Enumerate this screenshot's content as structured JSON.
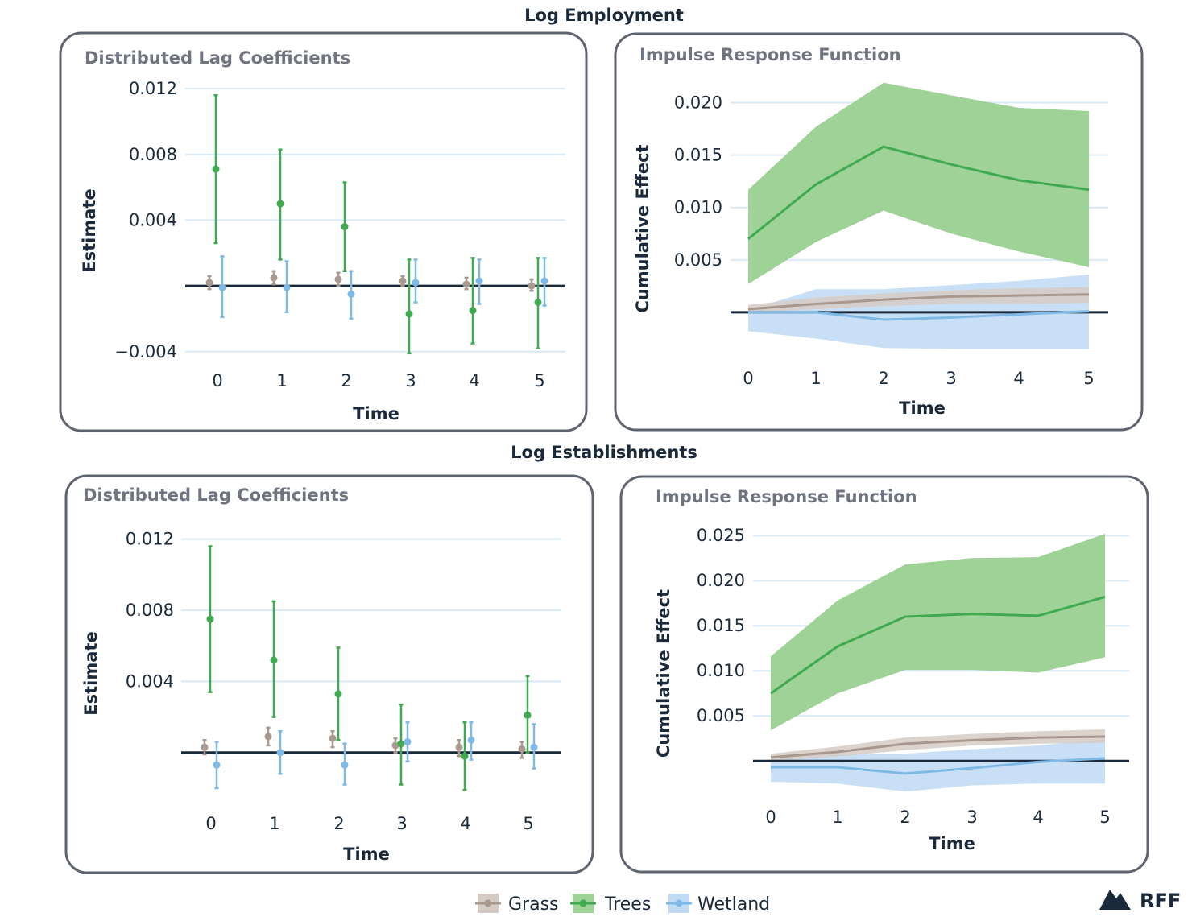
{
  "colors": {
    "grass": "#a8988e",
    "trees": "#3faa4f",
    "trees_band": "#9fd297",
    "wetland": "#7fb9e6",
    "wetland_band": "#c2dbf4",
    "grass_band": "#d6cbc4"
  },
  "legend": [
    {
      "key": "grass",
      "label": "Grass"
    },
    {
      "key": "trees",
      "label": "Trees"
    },
    {
      "key": "wetland",
      "label": "Wetland"
    }
  ],
  "brand": {
    "label": "RFF",
    "icon": "mountain-logo-icon"
  },
  "chart_data": [
    {
      "section": "Log Employment",
      "type": "errorbar",
      "title": "Distributed Lag Coefficients",
      "xlabel": "Time",
      "ylabel": "Estimate",
      "x": [
        0,
        1,
        2,
        3,
        4,
        5
      ],
      "xticks": [
        "0",
        "1",
        "2",
        "3",
        "4",
        "5"
      ],
      "yticks": [
        -0.004,
        0.004,
        0.008,
        0.012
      ],
      "ytick_labels": [
        "−0.004",
        "0.004",
        "0.008",
        "0.012"
      ],
      "ylim": [
        -0.0045,
        0.0122
      ],
      "series": [
        {
          "name": "Grass",
          "key": "grass",
          "values": [
            0.0002,
            0.0005,
            0.0004,
            0.0003,
            0.0001,
            0.0
          ],
          "lower": [
            -0.0002,
            0.0001,
            0.0,
            0.0,
            -0.0002,
            -0.0003
          ],
          "upper": [
            0.0006,
            0.0009,
            0.0008,
            0.0006,
            0.0005,
            0.0004
          ]
        },
        {
          "name": "Trees",
          "key": "trees",
          "values": [
            0.0071,
            0.005,
            0.0036,
            -0.0017,
            -0.0015,
            -0.001
          ],
          "lower": [
            0.0026,
            0.0016,
            0.0009,
            -0.0041,
            -0.0035,
            -0.0038
          ],
          "upper": [
            0.0116,
            0.0083,
            0.0063,
            0.0016,
            0.0017,
            0.0017
          ]
        },
        {
          "name": "Wetland",
          "key": "wetland",
          "values": [
            -0.0001,
            -0.0001,
            -0.0005,
            0.0002,
            0.0003,
            0.0003
          ],
          "lower": [
            -0.0019,
            -0.0016,
            -0.002,
            -0.001,
            -0.0011,
            -0.0012
          ],
          "upper": [
            0.0018,
            0.0015,
            0.0009,
            0.0016,
            0.0016,
            0.0017
          ]
        }
      ]
    },
    {
      "section": "Log Employment",
      "type": "line_band",
      "title": "Impulse Response Function",
      "xlabel": "Time",
      "ylabel": "Cumulative Effect",
      "x": [
        0,
        1,
        2,
        3,
        4,
        5
      ],
      "xticks": [
        "0",
        "1",
        "2",
        "3",
        "4",
        "5"
      ],
      "yticks": [
        0.005,
        0.01,
        0.015,
        0.02
      ],
      "ytick_labels": [
        "0.005",
        "0.010",
        "0.015",
        "0.020"
      ],
      "ylim": [
        -0.004,
        0.0215
      ],
      "series": [
        {
          "name": "Wetland",
          "key": "wetland",
          "values": [
            0.0,
            0.0,
            -0.0007,
            -0.0005,
            -0.0002,
            0.0001
          ],
          "lower": [
            -0.0018,
            -0.0025,
            -0.0034,
            -0.0035,
            -0.0035,
            -0.0035
          ],
          "upper": [
            0.0002,
            0.0022,
            0.0022,
            0.0026,
            0.003,
            0.0036
          ]
        },
        {
          "name": "Grass",
          "key": "grass",
          "values": [
            0.0003,
            0.0008,
            0.0012,
            0.0015,
            0.0016,
            0.0017
          ],
          "lower": [
            0.0,
            0.0003,
            0.0006,
            0.0008,
            0.0008,
            0.0009
          ],
          "upper": [
            0.0007,
            0.0014,
            0.0018,
            0.0021,
            0.0023,
            0.0024
          ]
        },
        {
          "name": "Trees",
          "key": "trees",
          "values": [
            0.007,
            0.0122,
            0.0158,
            0.0141,
            0.0126,
            0.0117
          ],
          "lower": [
            0.0027,
            0.0067,
            0.0097,
            0.0075,
            0.0058,
            0.0043
          ],
          "upper": [
            0.0117,
            0.0177,
            0.0219,
            0.0207,
            0.0195,
            0.0192
          ]
        }
      ]
    },
    {
      "section": "Log Establishments",
      "type": "errorbar",
      "title": "Distributed Lag Coefficients",
      "xlabel": "Time",
      "ylabel": "Estimate",
      "x": [
        0,
        1,
        2,
        3,
        4,
        5
      ],
      "xticks": [
        "0",
        "1",
        "2",
        "3",
        "4",
        "5"
      ],
      "yticks": [
        0.004,
        0.008,
        0.012
      ],
      "ytick_labels": [
        "0.004",
        "0.008",
        "0.012"
      ],
      "ylim": [
        -0.0025,
        0.0123
      ],
      "series": [
        {
          "name": "Grass",
          "key": "grass",
          "values": [
            0.0003,
            0.0009,
            0.0008,
            0.0004,
            0.0003,
            0.0002
          ],
          "lower": [
            -0.0001,
            0.0004,
            0.0003,
            0.0,
            -0.0002,
            -0.0003
          ],
          "upper": [
            0.0007,
            0.0014,
            0.0012,
            0.0008,
            0.0007,
            0.0006
          ]
        },
        {
          "name": "Trees",
          "key": "trees",
          "values": [
            0.0075,
            0.0052,
            0.0033,
            0.0005,
            -0.0002,
            0.0021
          ],
          "lower": [
            0.0034,
            0.002,
            0.0007,
            -0.0018,
            -0.0021,
            0.0
          ],
          "upper": [
            0.0116,
            0.0085,
            0.0059,
            0.0027,
            0.0017,
            0.0043
          ]
        },
        {
          "name": "Wetland",
          "key": "wetland",
          "values": [
            -0.0007,
            0.0,
            -0.0007,
            0.0006,
            0.0007,
            0.0003
          ],
          "lower": [
            -0.002,
            -0.0012,
            -0.0018,
            -0.0005,
            -0.0004,
            -0.0009
          ],
          "upper": [
            0.0006,
            0.0012,
            0.0005,
            0.0017,
            0.0017,
            0.0016
          ]
        }
      ]
    },
    {
      "section": "Log Establishments",
      "type": "line_band",
      "title": "Impulse Response Function",
      "xlabel": "Time",
      "ylabel": "Cumulative Effect",
      "x": [
        0,
        1,
        2,
        3,
        4,
        5
      ],
      "xticks": [
        "0",
        "1",
        "2",
        "3",
        "4",
        "5"
      ],
      "yticks": [
        0.005,
        0.01,
        0.015,
        0.02,
        0.025
      ],
      "ytick_labels": [
        "0.005",
        "0.010",
        "0.015",
        "0.020",
        "0.025"
      ],
      "ylim": [
        -0.004,
        0.0252
      ],
      "series": [
        {
          "name": "Wetland",
          "key": "wetland",
          "values": [
            -0.0007,
            -0.0007,
            -0.0014,
            -0.0008,
            -0.0001,
            0.0003
          ],
          "lower": [
            -0.0023,
            -0.0025,
            -0.0034,
            -0.0027,
            -0.0025,
            -0.0025
          ],
          "upper": [
            0.0004,
            0.0008,
            0.0008,
            0.0013,
            0.0017,
            0.0024
          ]
        },
        {
          "name": "Grass",
          "key": "grass",
          "values": [
            0.0004,
            0.001,
            0.0019,
            0.0023,
            0.0026,
            0.0027
          ],
          "lower": [
            0.0,
            0.0005,
            0.0012,
            0.0017,
            0.0019,
            0.002
          ],
          "upper": [
            0.0008,
            0.0016,
            0.0026,
            0.003,
            0.0033,
            0.0035
          ]
        },
        {
          "name": "Trees",
          "key": "trees",
          "values": [
            0.0075,
            0.0127,
            0.016,
            0.0163,
            0.0161,
            0.0182
          ],
          "lower": [
            0.0034,
            0.0075,
            0.0101,
            0.0101,
            0.0098,
            0.0115
          ],
          "upper": [
            0.0116,
            0.0178,
            0.0218,
            0.0225,
            0.0226,
            0.0252
          ]
        }
      ]
    }
  ]
}
